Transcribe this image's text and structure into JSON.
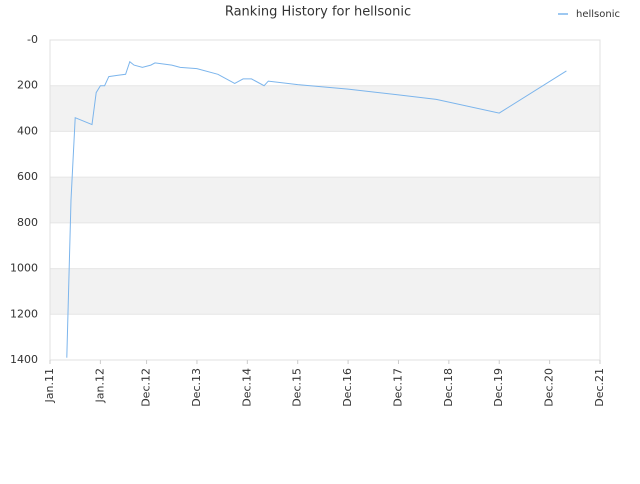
{
  "chart_data": {
    "type": "line",
    "title": "Ranking History for hellsonic",
    "x": [
      "2011-05",
      "2011-06",
      "2011-07",
      "2011-11",
      "2011-12",
      "2012-01",
      "2012-02",
      "2012-03",
      "2012-05",
      "2012-07",
      "2012-08",
      "2012-09",
      "2012-11",
      "2013-01",
      "2013-02",
      "2013-06",
      "2013-08",
      "2013-12",
      "2014-05",
      "2014-09",
      "2014-11",
      "2015-01",
      "2015-04",
      "2015-05",
      "2015-12",
      "2016-12",
      "2017-12",
      "2018-09",
      "2019-12",
      "2021-04"
    ],
    "series": [
      {
        "name": "hellsonic",
        "color": "#7cb5ec",
        "values": [
          1390,
          700,
          340,
          370,
          230,
          200,
          200,
          160,
          155,
          150,
          95,
          110,
          120,
          110,
          100,
          110,
          120,
          125,
          150,
          190,
          170,
          170,
          200,
          180,
          195,
          215,
          240,
          260,
          320,
          135
        ]
      }
    ],
    "xlim": [
      "2011-01",
      "2021-12"
    ],
    "xticks": [
      {
        "value": "2011-01",
        "label": "Jan.11"
      },
      {
        "value": "2012-01",
        "label": "Jan.12"
      },
      {
        "value": "2012-12",
        "label": "Dec.12"
      },
      {
        "value": "2013-12",
        "label": "Dec.13"
      },
      {
        "value": "2014-12",
        "label": "Dec.14"
      },
      {
        "value": "2015-12",
        "label": "Dec.15"
      },
      {
        "value": "2016-12",
        "label": "Dec.16"
      },
      {
        "value": "2017-12",
        "label": "Dec.17"
      },
      {
        "value": "2018-12",
        "label": "Dec.18"
      },
      {
        "value": "2019-12",
        "label": "Dec.19"
      },
      {
        "value": "2020-12",
        "label": "Dec.20"
      },
      {
        "value": "2021-12",
        "label": "Dec.21"
      }
    ],
    "ylim": [
      0,
      1400
    ],
    "y_inverted": true,
    "yticks": [
      {
        "value": 0,
        "label": "-0"
      },
      200,
      400,
      600,
      800,
      1000,
      1200,
      1400
    ],
    "grid": true,
    "legend": "top-right"
  }
}
